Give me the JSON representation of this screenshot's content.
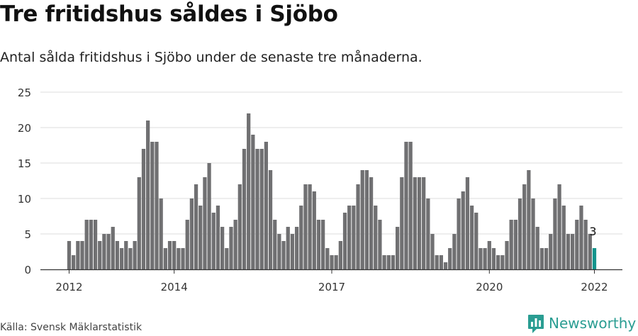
{
  "title": "Tre fritidshus såldes i Sjöbo",
  "subtitle": "Antal sålda fritidshus i Sjöbo under de senaste tre månaderna.",
  "source": "Källa: Svensk Mäklarstatistik",
  "brand": "Newsworthy",
  "colors": {
    "bar": "#707072",
    "highlight": "#14948c",
    "grid": "#dddddd",
    "axis": "#333333",
    "brand": "#2a9d92"
  },
  "chart_data": {
    "type": "bar",
    "title": "Tre fritidshus såldes i Sjöbo",
    "subtitle": "Antal sålda fritidshus i Sjöbo under de senaste tre månaderna.",
    "xlabel": "",
    "ylabel": "",
    "ylim": [
      0,
      25
    ],
    "yticks": [
      0,
      5,
      10,
      15,
      20,
      25
    ],
    "grid": true,
    "xticks": [
      {
        "label": "2012",
        "index": 0
      },
      {
        "label": "2014",
        "index": 24
      },
      {
        "label": "2017",
        "index": 60
      },
      {
        "label": "2020",
        "index": 96
      },
      {
        "label": "2022",
        "index": 120
      }
    ],
    "values": [
      4,
      2,
      4,
      4,
      7,
      7,
      7,
      4,
      5,
      5,
      6,
      4,
      3,
      4,
      3,
      4,
      13,
      17,
      21,
      18,
      18,
      10,
      3,
      4,
      4,
      3,
      3,
      7,
      10,
      12,
      9,
      13,
      15,
      8,
      9,
      6,
      3,
      6,
      7,
      12,
      17,
      22,
      19,
      17,
      17,
      18,
      14,
      7,
      5,
      4,
      6,
      5,
      6,
      9,
      12,
      12,
      11,
      7,
      7,
      3,
      2,
      2,
      4,
      8,
      9,
      9,
      12,
      14,
      14,
      13,
      9,
      7,
      2,
      2,
      2,
      6,
      13,
      18,
      18,
      13,
      13,
      13,
      10,
      5,
      2,
      2,
      1,
      3,
      5,
      10,
      11,
      13,
      9,
      8,
      3,
      3,
      4,
      3,
      2,
      2,
      4,
      7,
      7,
      10,
      12,
      14,
      10,
      6,
      3,
      3,
      5,
      10,
      12,
      9,
      5,
      5,
      7,
      9,
      7,
      5,
      3
    ],
    "annotation": {
      "index": 120,
      "label": "3"
    },
    "highlight_index": 120
  }
}
